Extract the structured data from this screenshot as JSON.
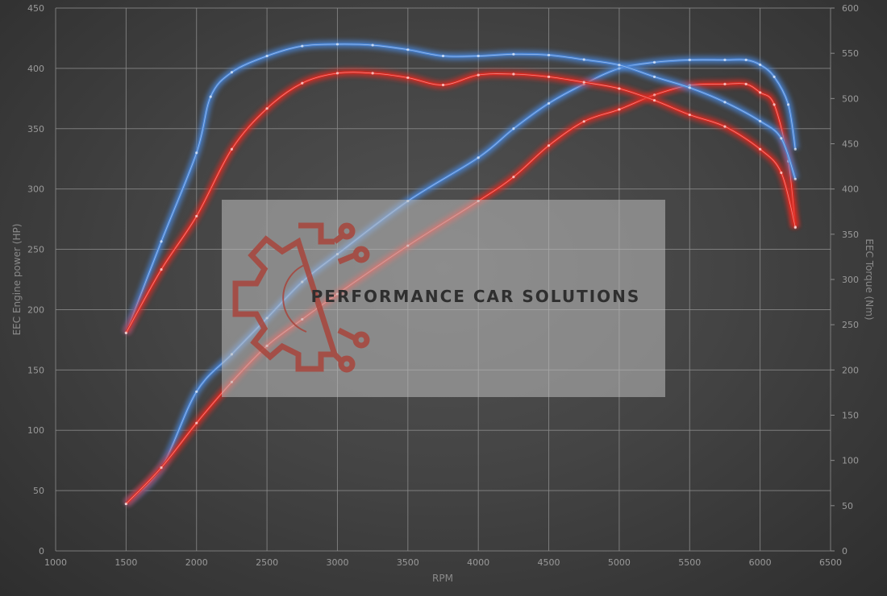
{
  "chart_data": {
    "type": "line",
    "xlabel": "RPM",
    "ylabel_left": "EEC Engine power (HP)",
    "ylabel_right": "EEC Torque (Nm)",
    "xlim": [
      1000,
      6500
    ],
    "ylim_left": [
      0,
      450
    ],
    "ylim_right": [
      0,
      600
    ],
    "x_ticks": [
      1000,
      1500,
      2000,
      2500,
      3000,
      3500,
      4000,
      4500,
      5000,
      5500,
      6000,
      6500
    ],
    "y_ticks_left": [
      0,
      50,
      100,
      150,
      200,
      250,
      300,
      350,
      400,
      450
    ],
    "y_ticks_right": [
      0,
      50,
      100,
      150,
      200,
      250,
      300,
      350,
      400,
      450,
      500,
      550,
      600
    ],
    "grid": true,
    "watermark": "PERFORMANCE CAR SOLUTIONS",
    "series": [
      {
        "color": "#4a86d8",
        "axis": "left",
        "kind": "power-tuned",
        "x": [
          1500,
          1750,
          2000,
          2250,
          2500,
          2750,
          3000,
          3500,
          4000,
          4250,
          4500,
          4750,
          5000,
          5250,
          5500,
          5750,
          5900,
          6000,
          6100,
          6200,
          6250
        ],
        "y": [
          39,
          69,
          132,
          163,
          193,
          223,
          246,
          290,
          326,
          350,
          371,
          387,
          400,
          405,
          407,
          407,
          407,
          403,
          393,
          370,
          333
        ]
      },
      {
        "color": "#e02a22",
        "axis": "left",
        "kind": "power-stock",
        "x": [
          1500,
          1750,
          2000,
          2250,
          2500,
          2750,
          3000,
          3500,
          4000,
          4250,
          4500,
          4750,
          5000,
          5250,
          5500,
          5750,
          5900,
          6000,
          6100,
          6200,
          6250
        ],
        "y": [
          39,
          69,
          106,
          140,
          170,
          192,
          213,
          253,
          290,
          310,
          336,
          356,
          366,
          378,
          386,
          387,
          387,
          380,
          370,
          323,
          268
        ]
      },
      {
        "color": "#4a86d8",
        "axis": "right",
        "kind": "torque-tuned",
        "x": [
          1500,
          1750,
          2000,
          2100,
          2250,
          2500,
          2750,
          3000,
          3250,
          3500,
          3750,
          4000,
          4250,
          4500,
          4750,
          5000,
          5250,
          5500,
          5750,
          6000,
          6150,
          6250
        ],
        "y": [
          241,
          342,
          440,
          502,
          529,
          547,
          558,
          560,
          559,
          554,
          547,
          547,
          549,
          548,
          543,
          537,
          524,
          512,
          496,
          475,
          456,
          411
        ]
      },
      {
        "color": "#e02a22",
        "axis": "right",
        "kind": "torque-stock",
        "x": [
          1500,
          1750,
          2000,
          2250,
          2500,
          2750,
          3000,
          3250,
          3500,
          3750,
          4000,
          4250,
          4500,
          4750,
          5000,
          5250,
          5500,
          5750,
          6000,
          6150,
          6250
        ],
        "y": [
          241,
          311,
          370,
          444,
          489,
          517,
          528,
          528,
          523,
          515,
          526,
          527,
          524,
          518,
          511,
          498,
          482,
          469,
          444,
          418,
          358
        ]
      }
    ]
  }
}
